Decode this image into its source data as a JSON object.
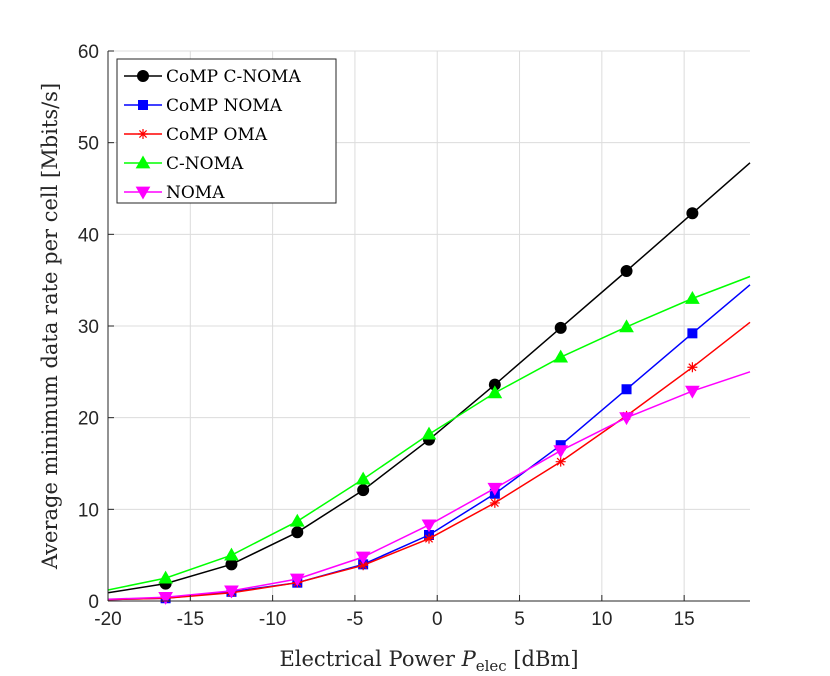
{
  "chart_data": {
    "type": "line",
    "title": "",
    "xlabel": "Electrical Power P_elec [dBm]",
    "xlabel_parts": {
      "pre": "Electrical Power ",
      "var": "P",
      "sub": "elec",
      "post": " [dBm]"
    },
    "ylabel": "Average minimum data rate per cell [Mbits/s]",
    "xlim": [
      -20,
      19
    ],
    "ylim": [
      0,
      60
    ],
    "xticks": [
      -20,
      -15,
      -10,
      -5,
      0,
      5,
      10,
      15
    ],
    "yticks": [
      0,
      10,
      20,
      30,
      40,
      50,
      60
    ],
    "grid": true,
    "legend_position": "top-left",
    "x": [
      -20,
      -16.5,
      -12.5,
      -8.5,
      -4.5,
      -0.5,
      3.5,
      7.5,
      11.5,
      15.5,
      19
    ],
    "marker_indices": [
      1,
      2,
      3,
      4,
      5,
      6,
      7,
      8,
      9
    ],
    "series": [
      {
        "name": "CoMP C-NOMA",
        "color": "#000000",
        "marker": "circle",
        "values": [
          0.9,
          1.9,
          4.0,
          7.5,
          12.1,
          17.6,
          23.6,
          29.8,
          36.0,
          42.3,
          47.8
        ]
      },
      {
        "name": "CoMP NOMA",
        "color": "#0000ff",
        "marker": "square",
        "values": [
          0.15,
          0.3,
          1.0,
          2.0,
          4.0,
          7.2,
          11.7,
          17.0,
          23.1,
          29.2,
          34.5
        ]
      },
      {
        "name": "CoMP OMA",
        "color": "#ff0000",
        "marker": "star",
        "values": [
          0.15,
          0.3,
          0.9,
          2.0,
          3.9,
          6.8,
          10.7,
          15.2,
          20.2,
          25.5,
          30.4
        ]
      },
      {
        "name": "C-NOMA",
        "color": "#00ff00",
        "marker": "triangle-up",
        "values": [
          1.2,
          2.5,
          5.0,
          8.7,
          13.3,
          18.2,
          22.7,
          26.6,
          29.9,
          33.0,
          35.4
        ]
      },
      {
        "name": "NOMA",
        "color": "#ff00ff",
        "marker": "triangle-down",
        "values": [
          0.2,
          0.4,
          1.1,
          2.4,
          4.8,
          8.3,
          12.3,
          16.4,
          20.0,
          22.9,
          25.0
        ]
      }
    ]
  }
}
